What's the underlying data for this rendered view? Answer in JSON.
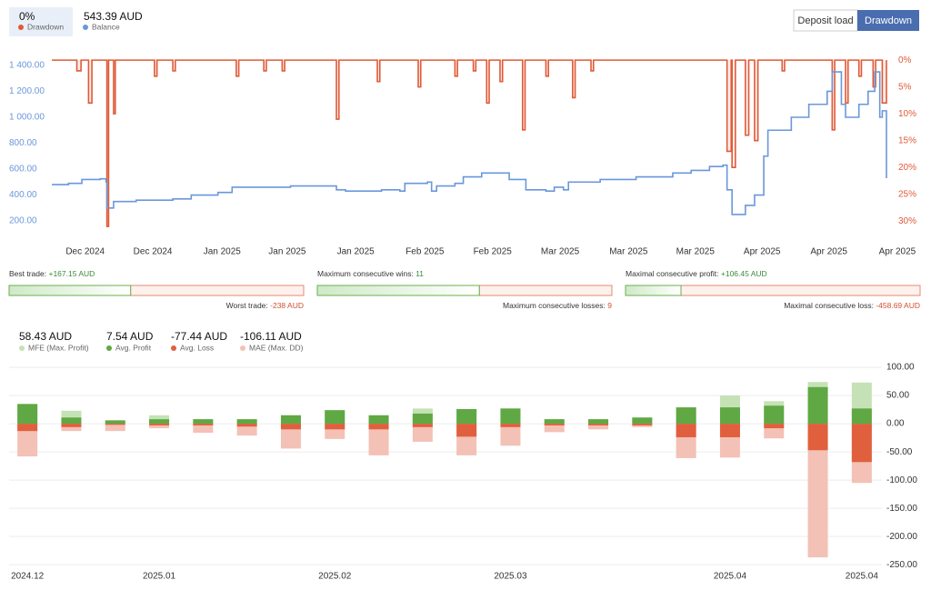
{
  "buttons": [
    "Deposit load",
    "Drawdown"
  ],
  "stats": [
    {
      "label": "Best trade:",
      "value": 167.15,
      "value_label": "+167.15 AUD",
      "opposite_label": "Worst trade:",
      "opposite_value": -238,
      "opposite_value_label": "-238 AUD"
    },
    {
      "label": "Maximum consecutive wins:",
      "value": 11,
      "opposite_label": "Maximum consecutive losses:",
      "opposite_value": 9
    },
    {
      "label": "Maximal consecutive profit:",
      "value": 106.45,
      "value_label": "+106.45 AUD",
      "opposite_label": "Maximal consecutive loss:",
      "opposite_value": -458.69,
      "opposite_value_label": "-458.69 AUD"
    }
  ],
  "chart_data": [
    {
      "type": "line",
      "series": [
        {
          "name": "Drawdown",
          "summary_label": "0%",
          "color": "#e05a37",
          "axis": "y2",
          "x": [
            0,
            3,
            3.5,
            4.4,
            4.8,
            6.6,
            6.8,
            7.4,
            7.6,
            12.3,
            12.6,
            14.5,
            14.8,
            22.1,
            22.4,
            25.4,
            25.7,
            27.6,
            27.9,
            34.1,
            34.4,
            39.0,
            39.3,
            43.9,
            44.2,
            48.3,
            48.6,
            50.5,
            50.8,
            52.1,
            52.4,
            53.7,
            54.0,
            56.4,
            56.7,
            59.2,
            59.5,
            62.4,
            62.7,
            64.6,
            64.9,
            80.9,
            81.4,
            81.5,
            81.9,
            83.1,
            83.5,
            84.2,
            84.6,
            87.5,
            87.8,
            93.5,
            93.8,
            95.1,
            95.4,
            96.7,
            97.0,
            98.4,
            98.7,
            99.5,
            100
          ],
          "values": [
            0,
            2,
            0,
            8,
            0,
            31,
            0,
            10,
            0,
            3,
            0,
            2,
            0,
            3,
            0,
            2,
            0,
            2,
            0,
            11,
            0,
            4,
            0,
            5,
            0,
            3,
            0,
            2,
            0,
            8,
            0,
            4,
            0,
            13,
            0,
            3,
            0,
            7,
            0,
            2,
            0,
            17,
            0,
            20,
            0,
            14,
            0,
            15,
            0,
            2,
            0,
            13,
            0,
            8,
            0,
            3,
            0,
            5,
            0,
            8,
            0
          ]
        },
        {
          "name": "Balance",
          "summary_label": "543.39 AUD",
          "color": "#6a97db",
          "x": [
            0,
            2.0,
            3.6,
            5.8,
            6.5,
            6.6,
            7.4,
            10.1,
            14.5,
            16.7,
            19.9,
            21.6,
            26.5,
            28.6,
            34.1,
            35.2,
            39.5,
            41.7,
            42.3,
            45.0,
            45.5,
            46.1,
            48.3,
            49.3,
            51.5,
            54.8,
            56.4,
            56.8,
            59.2,
            60.2,
            61.3,
            61.9,
            65.7,
            70.0,
            74.4,
            76.6,
            78.8,
            80.4,
            80.9,
            81.5,
            83.1,
            84.2,
            85.3,
            85.8,
            88.6,
            90.7,
            92.9,
            93.5,
            94.6,
            95.1,
            96.7,
            97.8,
            98.6,
            99.2,
            99.5,
            100
          ],
          "values": [
            480,
            490,
            520,
            525,
            500,
            300,
            350,
            360,
            370,
            400,
            420,
            460,
            460,
            470,
            440,
            430,
            440,
            430,
            490,
            500,
            430,
            470,
            490,
            540,
            570,
            520,
            520,
            440,
            430,
            460,
            440,
            500,
            520,
            540,
            570,
            590,
            620,
            630,
            440,
            250,
            320,
            400,
            700,
            900,
            1000,
            1100,
            1200,
            1350,
            1100,
            1000,
            1100,
            1200,
            1350,
            1000,
            1050,
            530
          ]
        }
      ],
      "xlim": [
        0,
        100
      ],
      "xticks": [
        {
          "value": 4.0,
          "label": "Dec 2024"
        },
        {
          "value": 12.1,
          "label": "Dec 2024"
        },
        {
          "value": 20.4,
          "label": "Jan 2025"
        },
        {
          "value": 28.2,
          "label": "Jan 2025"
        },
        {
          "value": 36.4,
          "label": "Jan 2025"
        },
        {
          "value": 44.7,
          "label": "Feb 2025"
        },
        {
          "value": 52.8,
          "label": "Feb 2025"
        },
        {
          "value": 60.9,
          "label": "Mar 2025"
        },
        {
          "value": 69.1,
          "label": "Mar 2025"
        },
        {
          "value": 77.1,
          "label": "Mar 2025"
        },
        {
          "value": 85.1,
          "label": "Apr 2025"
        },
        {
          "value": 93.1,
          "label": "Apr 2025"
        },
        {
          "value": 101.3,
          "label": "Apr 2025"
        }
      ],
      "ylim": [
        137,
        1470
      ],
      "yticks": [
        {
          "value": 200,
          "label": "200.00"
        },
        {
          "value": 400,
          "label": "400.00"
        },
        {
          "value": 600,
          "label": "600.00"
        },
        {
          "value": 800,
          "label": "800.00"
        },
        {
          "value": 1000,
          "label": "1 000.00"
        },
        {
          "value": 1200,
          "label": "1 200.00"
        },
        {
          "value": 1400,
          "label": "1 400.00"
        }
      ],
      "y2lim": [
        31.5,
        -0.7
      ],
      "y2ticks": [
        {
          "value": 0,
          "label": "0%"
        },
        {
          "value": 5,
          "label": "5%"
        },
        {
          "value": 10,
          "label": "10%"
        },
        {
          "value": 15,
          "label": "15%"
        },
        {
          "value": 20,
          "label": "20%"
        },
        {
          "value": 25,
          "label": "25%"
        },
        {
          "value": 30,
          "label": "30%"
        }
      ]
    },
    {
      "type": "bar",
      "categories": [
        "2024.12",
        null,
        null,
        "2025.01",
        null,
        null,
        null,
        "2025.02",
        null,
        null,
        null,
        "2025.03",
        null,
        null,
        null,
        null,
        "2025.04",
        null,
        null,
        "2025.04"
      ],
      "series": [
        {
          "name": "MFE (Max. Profit)",
          "summary_label": "58.43 AUD",
          "color": "#c5e2b6",
          "values": [
            35,
            23,
            6,
            15,
            8,
            8,
            15,
            24,
            15,
            27,
            26,
            27,
            8,
            8,
            11,
            29,
            50,
            40,
            74,
            73
          ]
        },
        {
          "name": "Avg. Profit",
          "summary_label": "7.54 AUD",
          "color": "#5fa843",
          "values": [
            35,
            11,
            6,
            8,
            8,
            8,
            15,
            24,
            15,
            18,
            26,
            27,
            8,
            8,
            11,
            29,
            29,
            32,
            65,
            27
          ]
        },
        {
          "name": "Avg. Loss",
          "summary_label": "-77.44 AUD",
          "color": "#e0603e",
          "values": [
            -13,
            -6,
            -2,
            -3,
            -3,
            -5,
            -10,
            -10,
            -10,
            -6,
            -23,
            -6,
            -3,
            -3,
            -3,
            -24,
            -24,
            -8,
            -47,
            -68
          ]
        },
        {
          "name": "MAE (Max. DD)",
          "summary_label": "-106.11 AUD",
          "color": "#f3c1b6",
          "values": [
            -58,
            -13,
            -13,
            -8,
            -16,
            -21,
            -44,
            -27,
            -56,
            -32,
            -56,
            -39,
            -15,
            -10,
            -6,
            -61,
            -60,
            -26,
            -237,
            -105
          ]
        }
      ],
      "ylim": [
        -261,
        113
      ],
      "yticks": [
        {
          "value": 100,
          "label": "100.00"
        },
        {
          "value": 50,
          "label": "50.00"
        },
        {
          "value": 0,
          "label": "0.00"
        },
        {
          "value": -50,
          "label": "-50.00"
        },
        {
          "value": -100,
          "label": "-100.00"
        },
        {
          "value": -150,
          "label": "-150.00"
        },
        {
          "value": -200,
          "label": "-200.00"
        },
        {
          "value": -250,
          "label": "-250.00"
        }
      ],
      "grid": true
    }
  ]
}
